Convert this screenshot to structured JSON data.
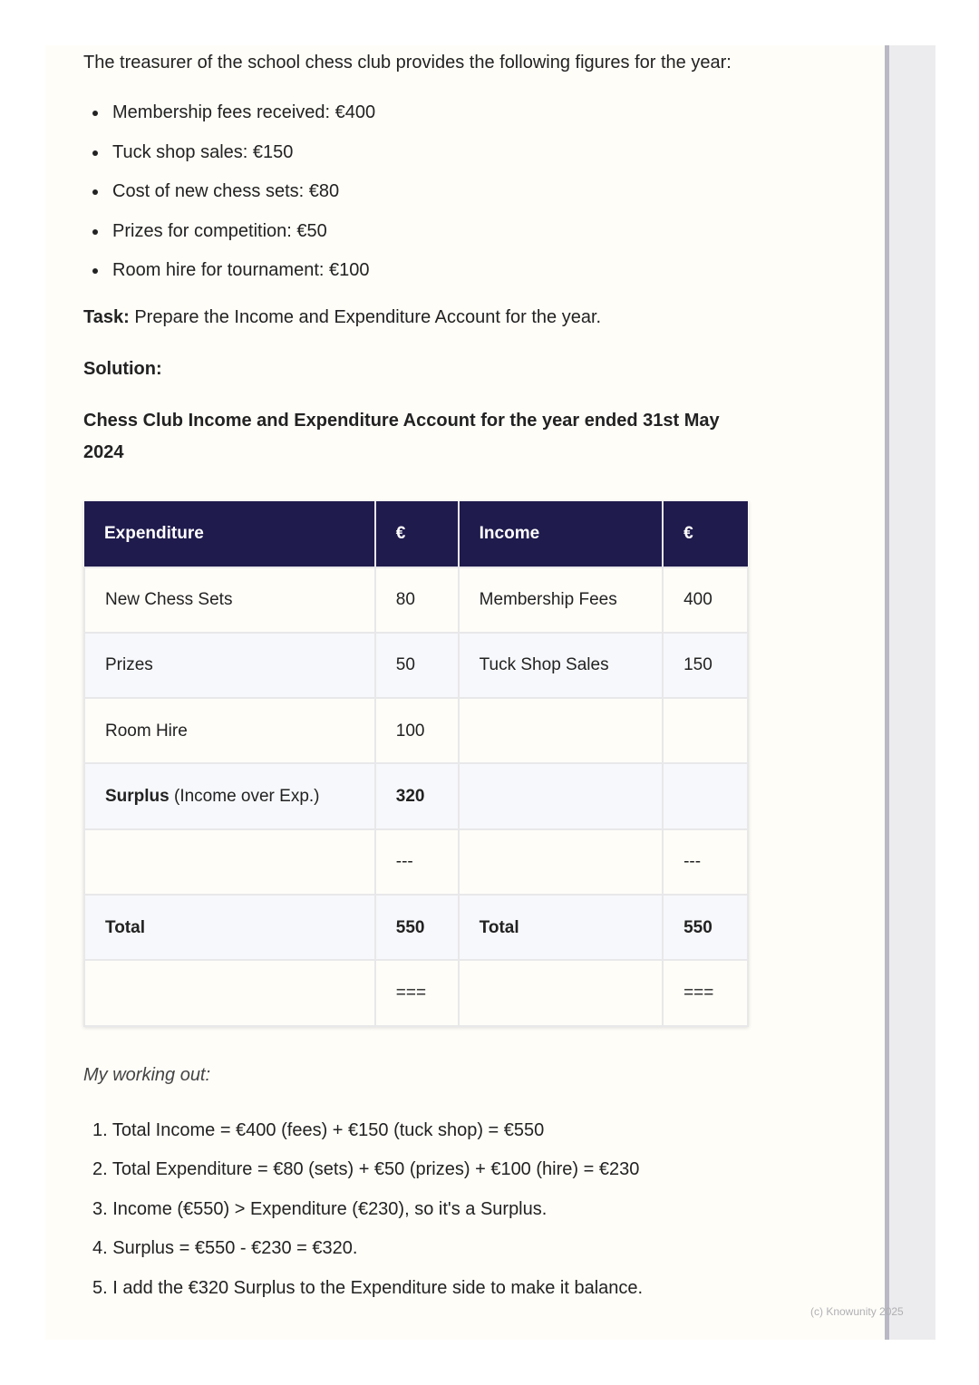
{
  "intro": "The treasurer of the school chess club provides the following figures for the year:",
  "figures": [
    "Membership fees received: €400",
    "Tuck shop sales: €150",
    "Cost of new chess sets: €80",
    "Prizes for competition: €50",
    "Room hire for tournament: €100"
  ],
  "task": {
    "label": "Task:",
    "text": " Prepare the Income and Expenditure Account for the year."
  },
  "solution_label": "Solution:",
  "account_title": "Chess Club Income and Expenditure Account for the year ended 31st May 2024",
  "table": {
    "headers": [
      "Expenditure",
      "€",
      "Income",
      "€"
    ],
    "rows": [
      {
        "exp": "New Chess Sets",
        "exp_amt": "80",
        "inc": "Membership Fees",
        "inc_amt": "400"
      },
      {
        "exp": "Prizes",
        "exp_amt": "50",
        "inc": "Tuck Shop Sales",
        "inc_amt": "150"
      },
      {
        "exp": "Room Hire",
        "exp_amt": "100",
        "inc": "",
        "inc_amt": ""
      },
      {
        "exp_bold": "Surplus",
        "exp": " (Income over Exp.)",
        "exp_amt": "320",
        "inc": "",
        "inc_amt": ""
      },
      {
        "exp": "",
        "exp_amt": "---",
        "inc": "",
        "inc_amt": "---"
      },
      {
        "exp": "Total",
        "exp_amt": "550",
        "inc": "Total",
        "inc_amt": "550"
      },
      {
        "exp": "",
        "exp_amt": "===",
        "inc": "",
        "inc_amt": "==="
      }
    ]
  },
  "working_label": "My working out:",
  "working": [
    "1. Total Income = €400 (fees) + €150 (tuck shop) = €550",
    "2. Total Expenditure = €80 (sets) + €50 (prizes) + €100 (hire) = €230",
    "3. Income (€550) > Expenditure (€230), so it's a Surplus.",
    "4. Surplus = €550 - €230 = €320.",
    "5. I add the €320 Surplus to the Expenditure side to make it balance."
  ],
  "copyright": "(c) Knowunity 2025"
}
